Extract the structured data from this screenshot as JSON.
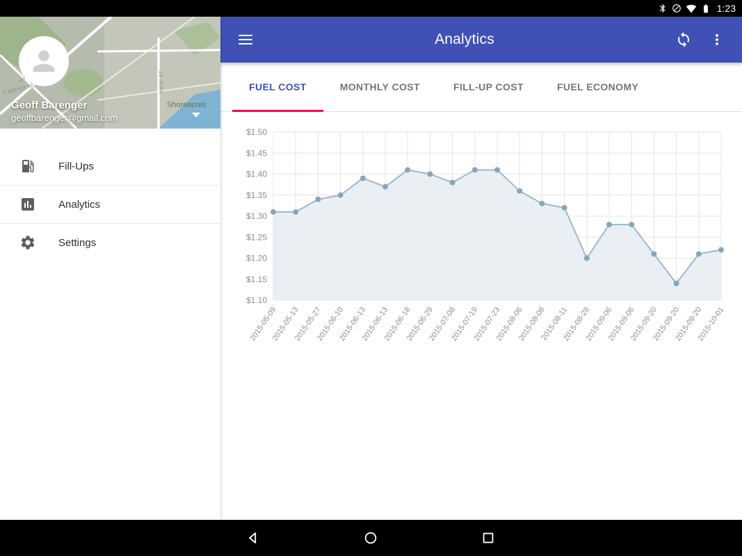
{
  "status_bar": {
    "time": "1:23",
    "icons": [
      "bluetooth-icon",
      "signal-off-icon",
      "wifi-icon",
      "battery-icon"
    ]
  },
  "drawer": {
    "user": {
      "name": "Geoff Barenger",
      "email": "geoffbarenger@gmail.com"
    },
    "map_labels": {
      "town": "Shoreacres",
      "road1": "HARVESTER RD",
      "road2": "NEW ST",
      "road3": "S SERVICE RD"
    },
    "items": [
      {
        "label": "Fill-Ups",
        "icon": "fuel-pump-icon"
      },
      {
        "label": "Analytics",
        "icon": "bar-chart-icon"
      },
      {
        "label": "Settings",
        "icon": "gear-icon"
      }
    ]
  },
  "appbar": {
    "title": "Analytics",
    "icons": [
      "menu-icon",
      "sync-icon",
      "overflow-menu-icon"
    ]
  },
  "tabs": [
    {
      "label": "FUEL COST",
      "active": true
    },
    {
      "label": "MONTHLY COST",
      "active": false
    },
    {
      "label": "FILL-UP COST",
      "active": false
    },
    {
      "label": "FUEL ECONOMY",
      "active": false
    }
  ],
  "chart_data": {
    "type": "area",
    "title": "",
    "xlabel": "",
    "ylabel": "",
    "x": [
      "2015-05-09",
      "2015-05-13",
      "2015-05-27",
      "2015-06-10",
      "2015-06-13",
      "2015-06-13",
      "2015-06-18",
      "2015-06-29",
      "2015-07-08",
      "2015-07-19",
      "2015-07-23",
      "2015-08-06",
      "2015-08-08",
      "2015-08-11",
      "2015-08-28",
      "2015-09-06",
      "2015-09-06",
      "2015-09-20",
      "2015-09-20",
      "2015-09-20",
      "2015-10-01"
    ],
    "series": [
      {
        "name": "Fuel Cost",
        "values": [
          1.31,
          1.31,
          1.34,
          1.35,
          1.39,
          1.37,
          1.41,
          1.4,
          1.38,
          1.41,
          1.41,
          1.36,
          1.33,
          1.32,
          1.2,
          1.28,
          1.28,
          1.21,
          1.14,
          1.21,
          1.22
        ]
      }
    ],
    "ylim": [
      1.1,
      1.5
    ],
    "ytick_step": 0.05,
    "ytick_prefix": "$",
    "grid": true,
    "legend": "none",
    "colors": {
      "line": "#9db8c8",
      "dot": "#85a7bd",
      "fill": "#e9eff3",
      "grid_line": "#e4e4e4",
      "tick_label": "#8d8d8d"
    }
  },
  "colors": {
    "appbar": "#3f51b5",
    "tab_active": "#3f51b5",
    "tab_inactive": "#757575",
    "tab_indicator": "#f50057",
    "status_bar": "#000000",
    "nav_bar": "#000000"
  },
  "navbar": {
    "icons": [
      "back-icon",
      "home-icon",
      "recents-icon"
    ]
  }
}
